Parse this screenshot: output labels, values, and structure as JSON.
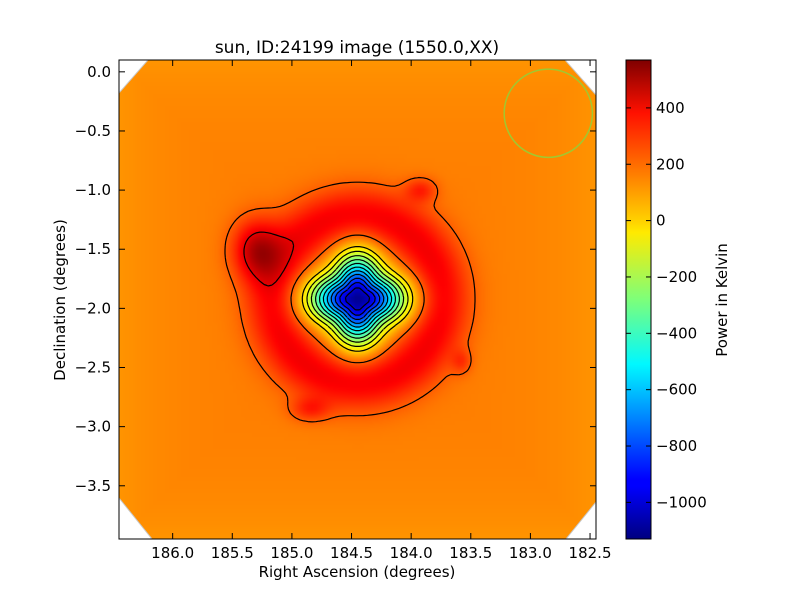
{
  "chart_data": {
    "type": "heatmap",
    "title": "sun, ID:24199 image (1550.0,XX)",
    "xlabel": "Right Ascension (degrees)",
    "ylabel": "Declination (degrees)",
    "xlim": [
      186.45,
      182.45
    ],
    "ylim": [
      -3.95,
      0.1
    ],
    "x_ticks": [
      {
        "value": 186.0,
        "label": "186.0"
      },
      {
        "value": 185.5,
        "label": "185.5"
      },
      {
        "value": 185.0,
        "label": "185.0"
      },
      {
        "value": 184.5,
        "label": "184.5"
      },
      {
        "value": 184.0,
        "label": "184.0"
      },
      {
        "value": 183.5,
        "label": "183.5"
      },
      {
        "value": 183.0,
        "label": "183.0"
      },
      {
        "value": 182.5,
        "label": "182.5"
      }
    ],
    "y_ticks": [
      {
        "value": 0.0,
        "label": "0.0"
      },
      {
        "value": -0.5,
        "label": "−0.5"
      },
      {
        "value": -1.0,
        "label": "−1.0"
      },
      {
        "value": -1.5,
        "label": "−1.5"
      },
      {
        "value": -2.0,
        "label": "−2.0"
      },
      {
        "value": -2.5,
        "label": "−2.5"
      },
      {
        "value": -3.0,
        "label": "−3.0"
      },
      {
        "value": -3.5,
        "label": "−3.5"
      }
    ],
    "colorbar": {
      "label": "Power in Kelvin",
      "range": [
        -1130,
        570
      ],
      "colormap": "jet",
      "ticks": [
        {
          "value": 400,
          "label": "400"
        },
        {
          "value": 200,
          "label": "200"
        },
        {
          "value": 0,
          "label": "0"
        },
        {
          "value": -200,
          "label": "−200"
        },
        {
          "value": -400,
          "label": "−400"
        },
        {
          "value": -600,
          "label": "−600"
        },
        {
          "value": -800,
          "label": "−800"
        },
        {
          "value": -1000,
          "label": "−1000"
        }
      ]
    },
    "field": {
      "background_value": 150,
      "ring": {
        "center": [
          184.45,
          -1.92
        ],
        "radius": 0.7,
        "width": 0.24,
        "amplitude": 230
      },
      "peaks": [
        {
          "ra": 185.3,
          "dec": -1.5,
          "amplitude": 290,
          "rx": 0.2,
          "ry": 0.25
        },
        {
          "ra": 183.92,
          "dec": -1.0,
          "amplitude": 150,
          "rx": 0.13,
          "ry": 0.1
        },
        {
          "ra": 184.85,
          "dec": -2.85,
          "amplitude": 140,
          "rx": 0.16,
          "ry": 0.1
        },
        {
          "ra": 183.58,
          "dec": -2.45,
          "amplitude": 110,
          "rx": 0.08,
          "ry": 0.1
        }
      ],
      "trough": {
        "ra": 184.45,
        "dec": -1.92,
        "amplitude": -1250,
        "rx": 0.32,
        "ry": 0.3
      },
      "edge_dip_value": -40,
      "contour_levels": [
        -1000,
        -900,
        -800,
        -700,
        -600,
        -500,
        -400,
        -300,
        -200,
        -100,
        0,
        200,
        400
      ]
    },
    "beam_circle": {
      "ra": 182.85,
      "dec": -0.35,
      "radius": 0.37,
      "color": "#a0c830"
    },
    "grid": false,
    "legend": "none"
  }
}
